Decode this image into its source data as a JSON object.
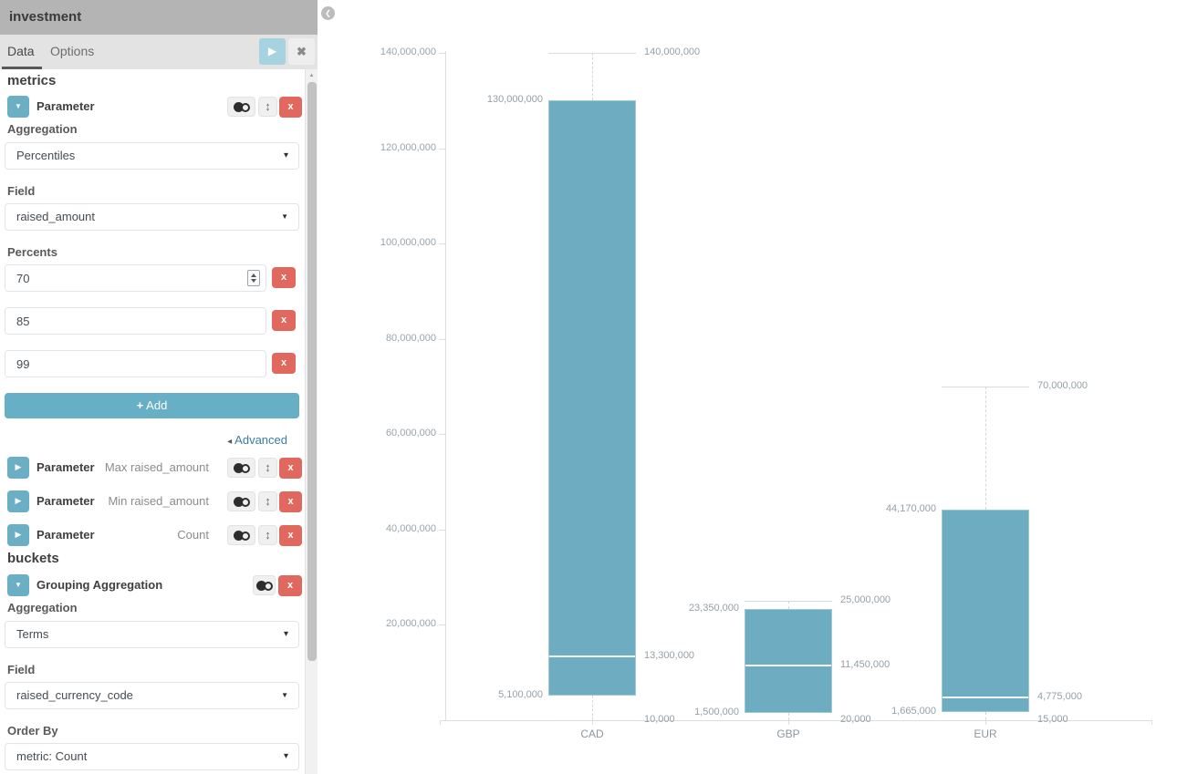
{
  "icons": {
    "play": "▶",
    "close": "✖",
    "collapse_chart": "❮",
    "chevron_down": "▼",
    "chevron_right": "▶",
    "select_caret": "▾",
    "combo_caret": "▼",
    "advanced_arrow": "◂",
    "move": "↕",
    "add_plus": "+",
    "scroll_up": "▲"
  },
  "colors": {
    "accent_teal": "#6aafc4",
    "bar": "#6eadc1",
    "danger": "#e0685f",
    "play_button": "#a7d2e0",
    "header_gray": "#b4b4b4"
  },
  "sidebar": {
    "title": "investment",
    "tabs": {
      "data": "Data",
      "options": "Options"
    },
    "metrics_heading": "metrics",
    "param1": {
      "label": "Parameter",
      "aggregation_label": "Aggregation",
      "aggregation_value": "Percentiles",
      "field_label": "Field",
      "field_value": "raised_amount",
      "percents_label": "Percents",
      "percents": [
        "70",
        "85",
        "99"
      ],
      "remove_label": "x"
    },
    "add_label": "Add",
    "advanced_label": "Advanced",
    "collapsed_params": [
      {
        "label": "Parameter",
        "desc": "Max raised_amount"
      },
      {
        "label": "Parameter",
        "desc": "Min raised_amount"
      },
      {
        "label": "Parameter",
        "desc": "Count"
      }
    ],
    "buckets_heading": "buckets",
    "bucket": {
      "label": "Grouping Aggregation",
      "aggregation_label": "Aggregation",
      "aggregation_value": "Terms",
      "field_label": "Field",
      "field_value": "raised_currency_code",
      "order_by_label": "Order By",
      "order_by_value": "metric: Count"
    },
    "remove_glyph": "x"
  },
  "chart_data": {
    "type": "boxplot",
    "title": "",
    "xlabel": "",
    "ylabel": "",
    "categories": [
      "CAD",
      "GBP",
      "EUR"
    ],
    "percentile_levels": [
      70,
      85,
      99
    ],
    "series": [
      {
        "category": "CAD",
        "min": 10000,
        "p70": 5100000,
        "p85": 13300000,
        "p99": 130000000,
        "max": 140000000
      },
      {
        "category": "GBP",
        "min": 20000,
        "p70": 1500000,
        "p85": 11450000,
        "p99": 23350000,
        "max": 25000000
      },
      {
        "category": "EUR",
        "min": 15000,
        "p70": 1665000,
        "p85": 4775000,
        "p99": 44170000,
        "max": 70000000
      }
    ],
    "ylim": [
      0,
      140000000
    ],
    "y_tick_step": 20000000,
    "grid": false,
    "legend": false,
    "bar_color": "#6eadc1"
  }
}
